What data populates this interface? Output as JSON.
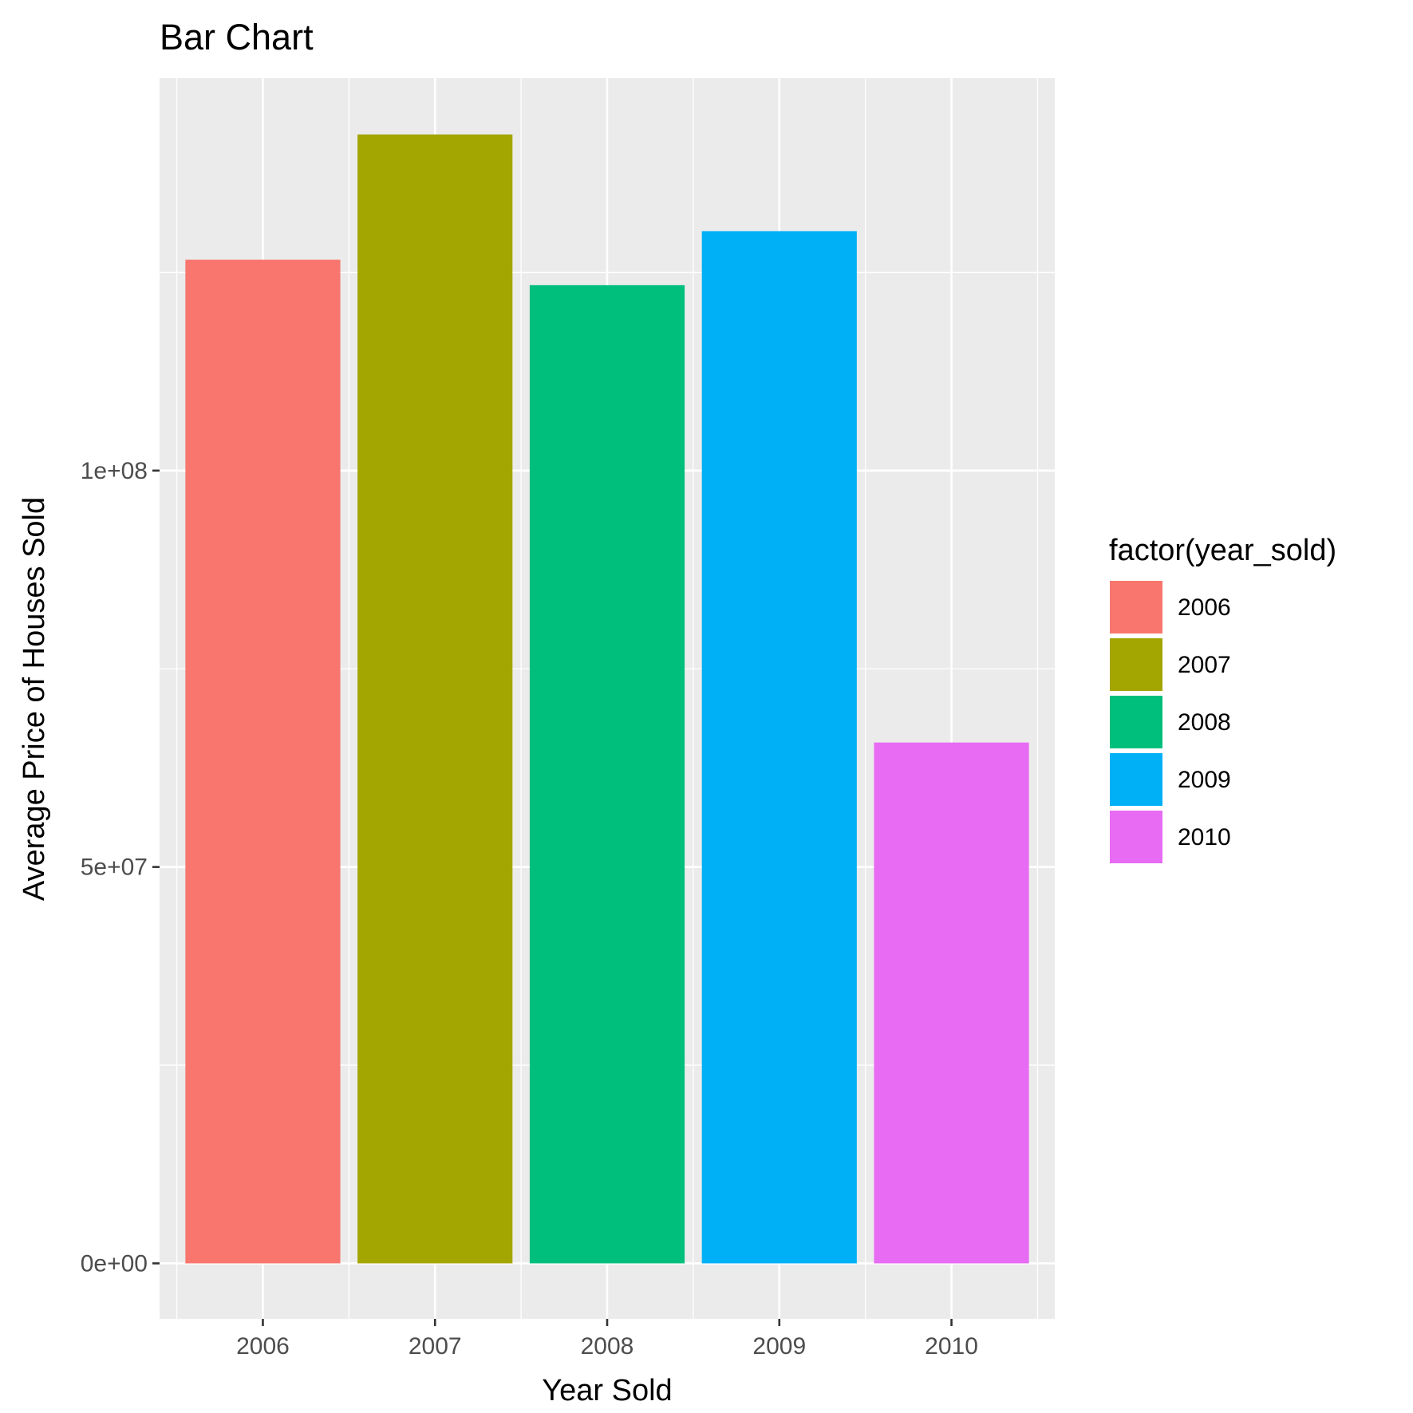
{
  "chart_data": {
    "type": "bar",
    "title": "Bar Chart",
    "xlabel": "Year Sold",
    "ylabel": "Average Price of Houses Sold",
    "categories": [
      "2006",
      "2007",
      "2008",
      "2009",
      "2010"
    ],
    "values": [
      126600000,
      142400000,
      123400000,
      130200000,
      65700000
    ],
    "colors": [
      "#F8766D",
      "#A3A500",
      "#00BF7D",
      "#00B0F6",
      "#E76BF3"
    ],
    "ylim": [
      -7000000,
      149500000
    ],
    "yticks": [
      0,
      50000000,
      100000000
    ],
    "ytick_labels": [
      "0e+00",
      "5e+07",
      "1e+08"
    ],
    "grid": true,
    "legend": {
      "title": "factor(year_sold)",
      "position": "right",
      "entries": [
        "2006",
        "2007",
        "2008",
        "2009",
        "2010"
      ]
    }
  }
}
